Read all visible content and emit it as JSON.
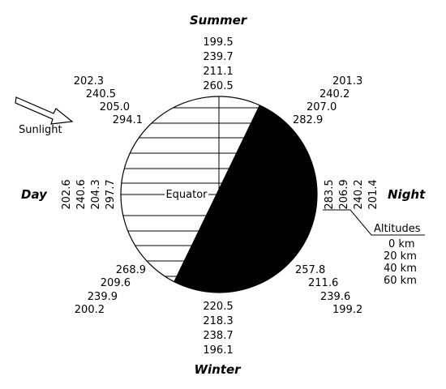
{
  "labels": {
    "top": "Summer",
    "bottom": "Winter",
    "left": "Day",
    "right": "Night",
    "sunlight": "Sunlight",
    "equator": "Equator",
    "altitudes_title": "Altitudes"
  },
  "altitudes": [
    "0 km",
    "20 km",
    "40 km",
    "60 km"
  ],
  "readings": {
    "top": [
      "199.5",
      "239.7",
      "211.1",
      "260.5"
    ],
    "top_left": [
      "202.3",
      "240.5",
      "205.0",
      "294.1"
    ],
    "top_right": [
      "201.3",
      "240.2",
      "207.0",
      "282.9"
    ],
    "left": [
      "202.6",
      "240.6",
      "204.3",
      "297.7"
    ],
    "right": [
      "283.5",
      "206.9",
      "240.2",
      "201.4"
    ],
    "bottom_left": [
      "268.9",
      "209.6",
      "239.9",
      "200.2"
    ],
    "bottom_right": [
      "257.8",
      "211.6",
      "239.6",
      "199.2"
    ],
    "bottom": [
      "220.5",
      "218.3",
      "238.7",
      "196.1"
    ]
  },
  "colors": {
    "night": "#000000",
    "day": "#ffffff",
    "lines": "#000000"
  }
}
